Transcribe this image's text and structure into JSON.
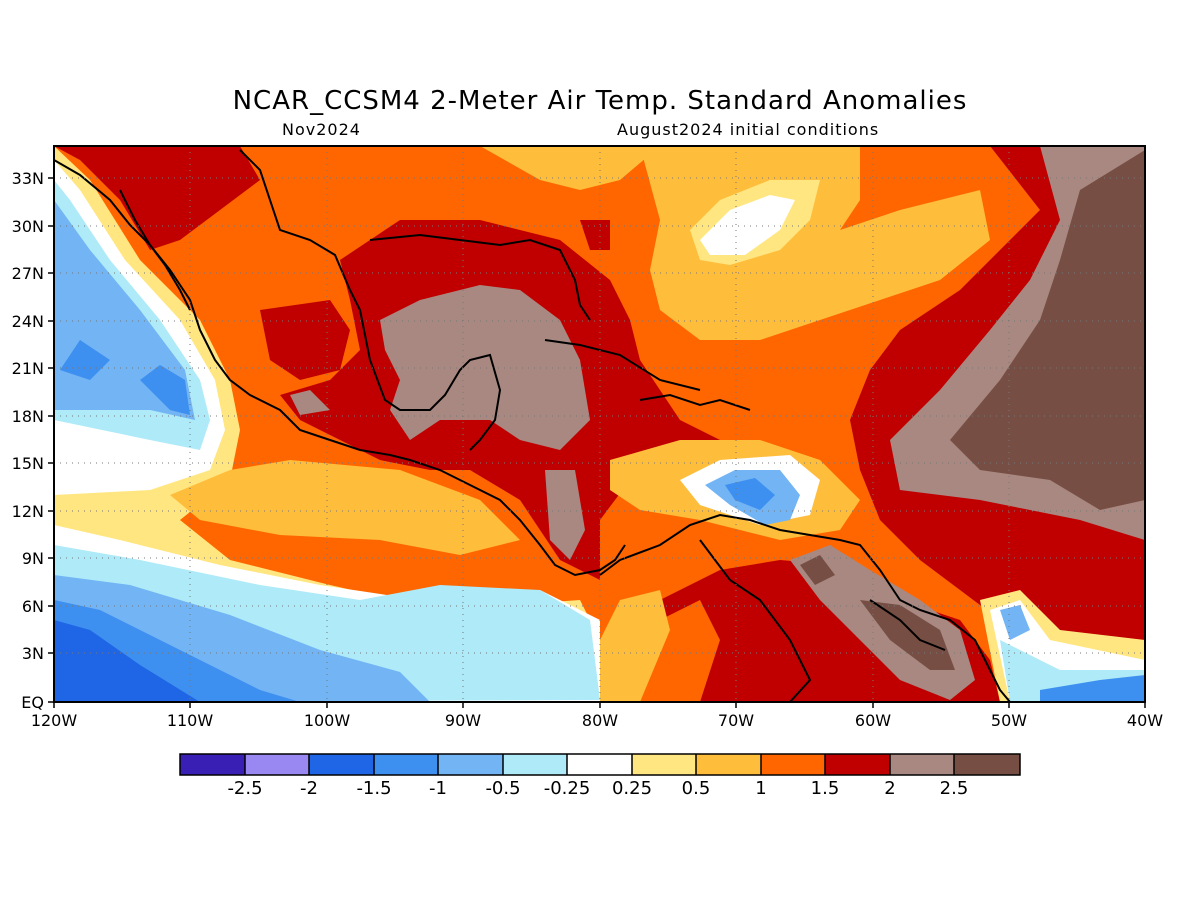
{
  "title": "NCAR_CCSM4 2-Meter Air Temp. Standard Anomalies",
  "subtitle_left": "Nov2024",
  "subtitle_right": "August2024 initial conditions",
  "lon_ticks": [
    "120W",
    "110W",
    "100W",
    "90W",
    "80W",
    "70W",
    "60W",
    "50W",
    "40W"
  ],
  "lat_ticks": [
    "33N",
    "30N",
    "27N",
    "24N",
    "21N",
    "18N",
    "15N",
    "12N",
    "9N",
    "6N",
    "3N",
    "EQ"
  ],
  "colorbar": {
    "colors": [
      "#3a1fb4",
      "#9a88f2",
      "#1f66e6",
      "#3d8ff0",
      "#72b4f4",
      "#aeeaf8",
      "#ffffff",
      "#ffe680",
      "#ffbd3c",
      "#ff6600",
      "#c00000",
      "#a88880",
      "#764e44"
    ],
    "labels": [
      "-2.5",
      "-2",
      "-1.5",
      "-1",
      "-0.5",
      "-0.25",
      "0.25",
      "0.5",
      "1",
      "1.5",
      "2",
      "2.5"
    ]
  }
}
